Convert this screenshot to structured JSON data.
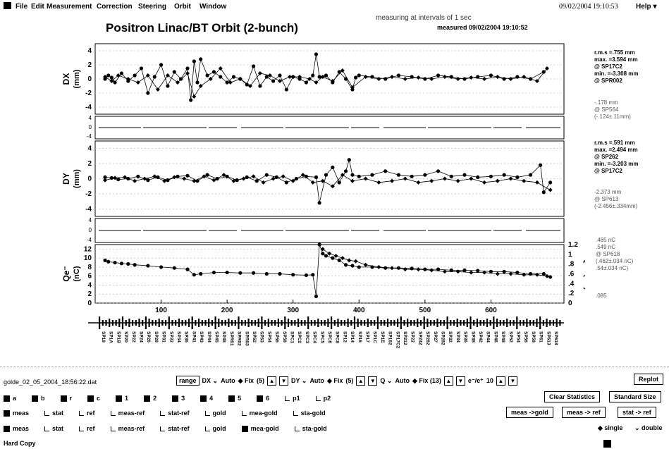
{
  "menubar": {
    "items": [
      "File",
      "Edit",
      "Measurement",
      "Correction",
      "Steering",
      "Orbit",
      "Window"
    ],
    "help": "Help",
    "datetime": "09/02/2004 19:10:53"
  },
  "header": {
    "title": "Positron  Linac/BT  Orbit  (2-bunch)",
    "status_interval": "measuring at intervals of 1 sec",
    "status_measured": "measured   09/02/2004 19:10:52"
  },
  "panels": {
    "dx": {
      "ylabel": "DX",
      "unit": "(mm)",
      "ticks": [
        "4",
        "2",
        "0",
        "-2",
        "-4"
      ]
    },
    "dy": {
      "ylabel": "DY",
      "unit": "(mm)",
      "ticks": [
        "4",
        "2",
        "0",
        "-2",
        "-4"
      ]
    },
    "qe": {
      "ylabel": "Qe⁻",
      "unit": "(nC)",
      "ticks": [
        "12",
        "10",
        "8",
        "6",
        "4",
        "2",
        "0"
      ],
      "right_ticks": [
        "1.2",
        "1",
        ".8",
        ".6",
        ".4",
        ".2",
        "0"
      ],
      "right_label": "Qe⁺ (nC)"
    },
    "x_ticks": [
      "100",
      "200",
      "300",
      "400",
      "500",
      "600"
    ]
  },
  "stats_dx": [
    "r.m.s =.755 mm",
    "max. =3.594 mm",
    "@ SP17C2",
    "min. =-3.308 mm",
    "@ SPR002"
  ],
  "stats_dx_extra": [
    "-.178 mm",
    "@ SP564",
    "(-.124±.11mm)"
  ],
  "stats_dy": [
    "r.m.s =.591 mm",
    "max. =2.494 mm",
    "@ SP262",
    "min. =-3.203 mm",
    "@ SP17C2"
  ],
  "stats_dy_extra": [
    "-2.373 mm",
    "@ SP613",
    "(-2.456±.334mm)"
  ],
  "stats_q": [
    ".485 nC",
    ".549 nC",
    "@ SP618",
    "(.462±.034 nC)",
    ".54±.034 nC)"
  ],
  "stats_q_extra": ".085",
  "controls": {
    "filename": "golde_02_05_2004_18:56:22.dat",
    "range_label": "range",
    "dx_label": "DX",
    "dx_mode": "Auto",
    "dx_fix": "Fix",
    "dx_fix_val": "(5)",
    "dy_label": "DY",
    "dy_mode": "Auto",
    "dy_fix": "Fix",
    "dy_fix_val": "(5)",
    "q_label": "Q",
    "q_mode": "Auto",
    "q_fix": "Fix (13)",
    "ratio_label": "e⁻/e⁺",
    "ratio_val": "10",
    "replot": "Replot",
    "clear_stats": "Clear Statistics",
    "standard_size": "Standard Size",
    "meas_gold": "meas ->gold",
    "meas_ref": "meas -> ref",
    "stat_ref": "stat -> ref",
    "single": "single",
    "double": "double",
    "hardcopy": "Hard Copy"
  },
  "row1": [
    {
      "label": "a",
      "on": true
    },
    {
      "label": "b",
      "on": true
    },
    {
      "label": "r",
      "on": true
    },
    {
      "label": "c",
      "on": true
    },
    {
      "label": "1",
      "on": true
    },
    {
      "label": "2",
      "on": true
    },
    {
      "label": "3",
      "on": true
    },
    {
      "label": "4",
      "on": true
    },
    {
      "label": "5",
      "on": true
    },
    {
      "label": "6",
      "on": true
    },
    {
      "label": "p1",
      "on": false
    },
    {
      "label": "p2",
      "on": false
    }
  ],
  "row2": [
    {
      "label": "meas",
      "on": true
    },
    {
      "label": "stat",
      "on": false
    },
    {
      "label": "ref",
      "on": false
    },
    {
      "label": "meas-ref",
      "on": false
    },
    {
      "label": "stat-ref",
      "on": false
    },
    {
      "label": "gold",
      "on": false
    },
    {
      "label": "mea-gold",
      "on": false
    },
    {
      "label": "sta-gold",
      "on": false
    }
  ],
  "row3": [
    {
      "label": "meas",
      "on": true
    },
    {
      "label": "stat",
      "on": false
    },
    {
      "label": "ref",
      "on": false
    },
    {
      "label": "meas-ref",
      "on": false
    },
    {
      "label": "stat-ref",
      "on": false
    },
    {
      "label": "gold",
      "on": false
    },
    {
      "label": "mea-gold",
      "on": true
    },
    {
      "label": "sta-gold",
      "on": false
    }
  ],
  "bpm_labels": [
    "SP18",
    "SP1A",
    "SP1B",
    "SP20",
    "SP22",
    "SP24",
    "SP26",
    "SP28",
    "SP31",
    "SP32",
    "SP34",
    "SP36",
    "SP41",
    "SP43",
    "SP44",
    "SP45",
    "SP48",
    "SPR01",
    "SPR02",
    "SPR03",
    "SP52",
    "SP53",
    "SP54",
    "SP56",
    "SP58",
    "SPC1",
    "SPC2",
    "SPC3",
    "SPC4",
    "SPC5",
    "SPC6",
    "SPC8",
    "SP12",
    "SP14",
    "SP16",
    "SP17",
    "SP1C",
    "SP1E",
    "SP162",
    "SP17C2",
    "SP212",
    "SP22",
    "SP242",
    "SP262",
    "SP27",
    "SP282",
    "SP32",
    "SP34",
    "SP36",
    "SP38",
    "SP42",
    "SP44",
    "SP46",
    "SP48",
    "SP52",
    "SP54",
    "SP56",
    "SP58",
    "SP61",
    "SP613",
    "SP618"
  ],
  "chart_data": [
    {
      "type": "line",
      "ylabel": "DX (mm)",
      "ylim": [
        -5,
        5
      ],
      "xlim": [
        0,
        700
      ],
      "series": [
        {
          "x": [
            15,
            20,
            25,
            30,
            40,
            50,
            60,
            70,
            80,
            90,
            100,
            110,
            120,
            130,
            140,
            145,
            150,
            155,
            160,
            170,
            180,
            190,
            200,
            210,
            220,
            230,
            240,
            250,
            260,
            270,
            280,
            290,
            300,
            310,
            320,
            330,
            335,
            340,
            350,
            360,
            370,
            380,
            390,
            395,
            400,
            420,
            440,
            460,
            480,
            500,
            520,
            540,
            560,
            580,
            600,
            620,
            640,
            660,
            680
          ],
          "y": [
            0,
            0.5,
            0.2,
            -0.5,
            0.8,
            -0.3,
            0.5,
            1.5,
            -2,
            0.3,
            2,
            -1,
            1,
            0,
            1.5,
            -3,
            2.5,
            -0.5,
            2.8,
            0.5,
            1,
            0.3,
            -0.5,
            0.3,
            0,
            -0.8,
            1.8,
            -1,
            0.3,
            -0.3,
            0.5,
            -1.5,
            0.3,
            0,
            -0.5,
            0.5,
            3.5,
            0.3,
            0.5,
            -0.5,
            1,
            0,
            -1.5,
            0.2,
            0.5,
            0.3,
            0,
            0.5,
            0.3,
            0,
            0.5,
            0.3,
            0,
            0.3,
            0.5,
            0,
            0.3,
            0,
            1
          ]
        },
        {
          "x": [
            15,
            25,
            35,
            50,
            65,
            80,
            95,
            110,
            125,
            140,
            150,
            160,
            175,
            190,
            205,
            220,
            235,
            250,
            265,
            280,
            295,
            310,
            325,
            335,
            345,
            360,
            375,
            390,
            410,
            430,
            450,
            470,
            490,
            510,
            530,
            550,
            570,
            590,
            610,
            630,
            650,
            670,
            685
          ],
          "y": [
            0.3,
            -0.3,
            0.5,
            0,
            -0.5,
            0.5,
            -1.5,
            0.5,
            -0.5,
            0.8,
            -2.5,
            -1,
            0,
            1.5,
            -0.5,
            0,
            -1,
            0.8,
            0.5,
            -0.3,
            0.3,
            0.3,
            0,
            -0.5,
            0.3,
            -0.3,
            1.2,
            -1.2,
            0.3,
            0,
            0.3,
            0,
            0.2,
            0,
            0.3,
            0,
            0.2,
            0,
            0.3,
            0,
            0.3,
            -0.3,
            1.5
          ]
        }
      ]
    },
    {
      "type": "line",
      "ylabel": "DY (mm)",
      "ylim": [
        -5,
        5
      ],
      "xlim": [
        0,
        700
      ],
      "series": [
        {
          "x": [
            15,
            25,
            35,
            50,
            65,
            80,
            95,
            110,
            125,
            140,
            155,
            170,
            185,
            200,
            215,
            230,
            245,
            260,
            275,
            290,
            305,
            320,
            335,
            340,
            350,
            360,
            370,
            380,
            385,
            390,
            400,
            420,
            440,
            460,
            480,
            500,
            520,
            540,
            560,
            580,
            600,
            620,
            640,
            660,
            675,
            680,
            690
          ],
          "y": [
            0.2,
            0.1,
            -0.1,
            0,
            0.3,
            -0.2,
            0.2,
            -0.2,
            0.3,
            0.4,
            -0.3,
            0.5,
            0,
            0.3,
            -0.2,
            0.2,
            -0.3,
            0.5,
            0.2,
            -0.5,
            0,
            0.3,
            0.2,
            -3.2,
            0.5,
            1.5,
            -0.5,
            1,
            2.5,
            0.5,
            0.3,
            0.5,
            1,
            0.5,
            0.3,
            0.5,
            1,
            0.3,
            0.5,
            0.2,
            0.3,
            0.5,
            0.2,
            0.5,
            1.8,
            -1.8,
            -0.5
          ]
        },
        {
          "x": [
            15,
            30,
            45,
            60,
            75,
            90,
            105,
            120,
            135,
            150,
            165,
            180,
            195,
            210,
            225,
            240,
            255,
            270,
            285,
            300,
            315,
            330,
            345,
            360,
            375,
            390,
            410,
            430,
            450,
            470,
            490,
            510,
            530,
            550,
            570,
            590,
            610,
            630,
            650,
            670,
            690
          ],
          "y": [
            -0.2,
            0.1,
            0.2,
            -0.3,
            0,
            0.3,
            -0.3,
            0.2,
            0,
            -0.3,
            0.3,
            -0.2,
            0.5,
            -0.3,
            0,
            0.3,
            -0.5,
            0,
            0.3,
            -0.3,
            0.5,
            -0.5,
            -0.3,
            -1,
            0.5,
            -0.3,
            0,
            -0.5,
            -0.3,
            0,
            -0.5,
            -0.3,
            0,
            -0.3,
            0,
            -0.5,
            -0.3,
            0,
            -0.3,
            -0.5,
            -1.5
          ]
        }
      ]
    },
    {
      "type": "line",
      "ylabel": "Qe- (nC)",
      "ylim": [
        0,
        13
      ],
      "xlim": [
        0,
        700
      ],
      "series": [
        {
          "x": [
            15,
            20,
            30,
            40,
            50,
            60,
            80,
            100,
            120,
            140,
            150,
            160,
            180,
            200,
            220,
            240,
            260,
            280,
            300,
            320,
            330,
            335,
            340,
            345,
            350,
            360,
            370,
            380,
            390,
            400,
            420,
            440,
            460,
            480,
            500,
            520,
            540,
            560,
            580,
            600,
            620,
            640,
            660,
            680,
            690
          ],
          "y": [
            9.5,
            9.2,
            9,
            8.8,
            8.7,
            8.5,
            8.3,
            8,
            7.8,
            7.5,
            6.3,
            6.5,
            6.8,
            6.8,
            6.7,
            6.7,
            6.5,
            6.5,
            6.3,
            6.2,
            6.3,
            1.5,
            13,
            11,
            10.5,
            10,
            9.5,
            8.5,
            8.3,
            8,
            8,
            7.8,
            7.8,
            7.7,
            7.5,
            7.5,
            7.3,
            7.3,
            7.2,
            7,
            7,
            6.8,
            6.5,
            6.5,
            5.8
          ]
        },
        {
          "x": [
            345,
            355,
            365,
            375,
            385,
            395,
            410,
            430,
            450,
            470,
            490,
            510,
            530,
            550,
            570,
            590,
            610,
            630,
            650,
            670,
            685
          ],
          "y": [
            12,
            11,
            10.5,
            10,
            9.5,
            9.3,
            8.5,
            8,
            7.8,
            7.5,
            7.5,
            7.3,
            7,
            7,
            6.8,
            6.8,
            6.5,
            6.5,
            6.3,
            6.3,
            6
          ]
        }
      ]
    }
  ]
}
